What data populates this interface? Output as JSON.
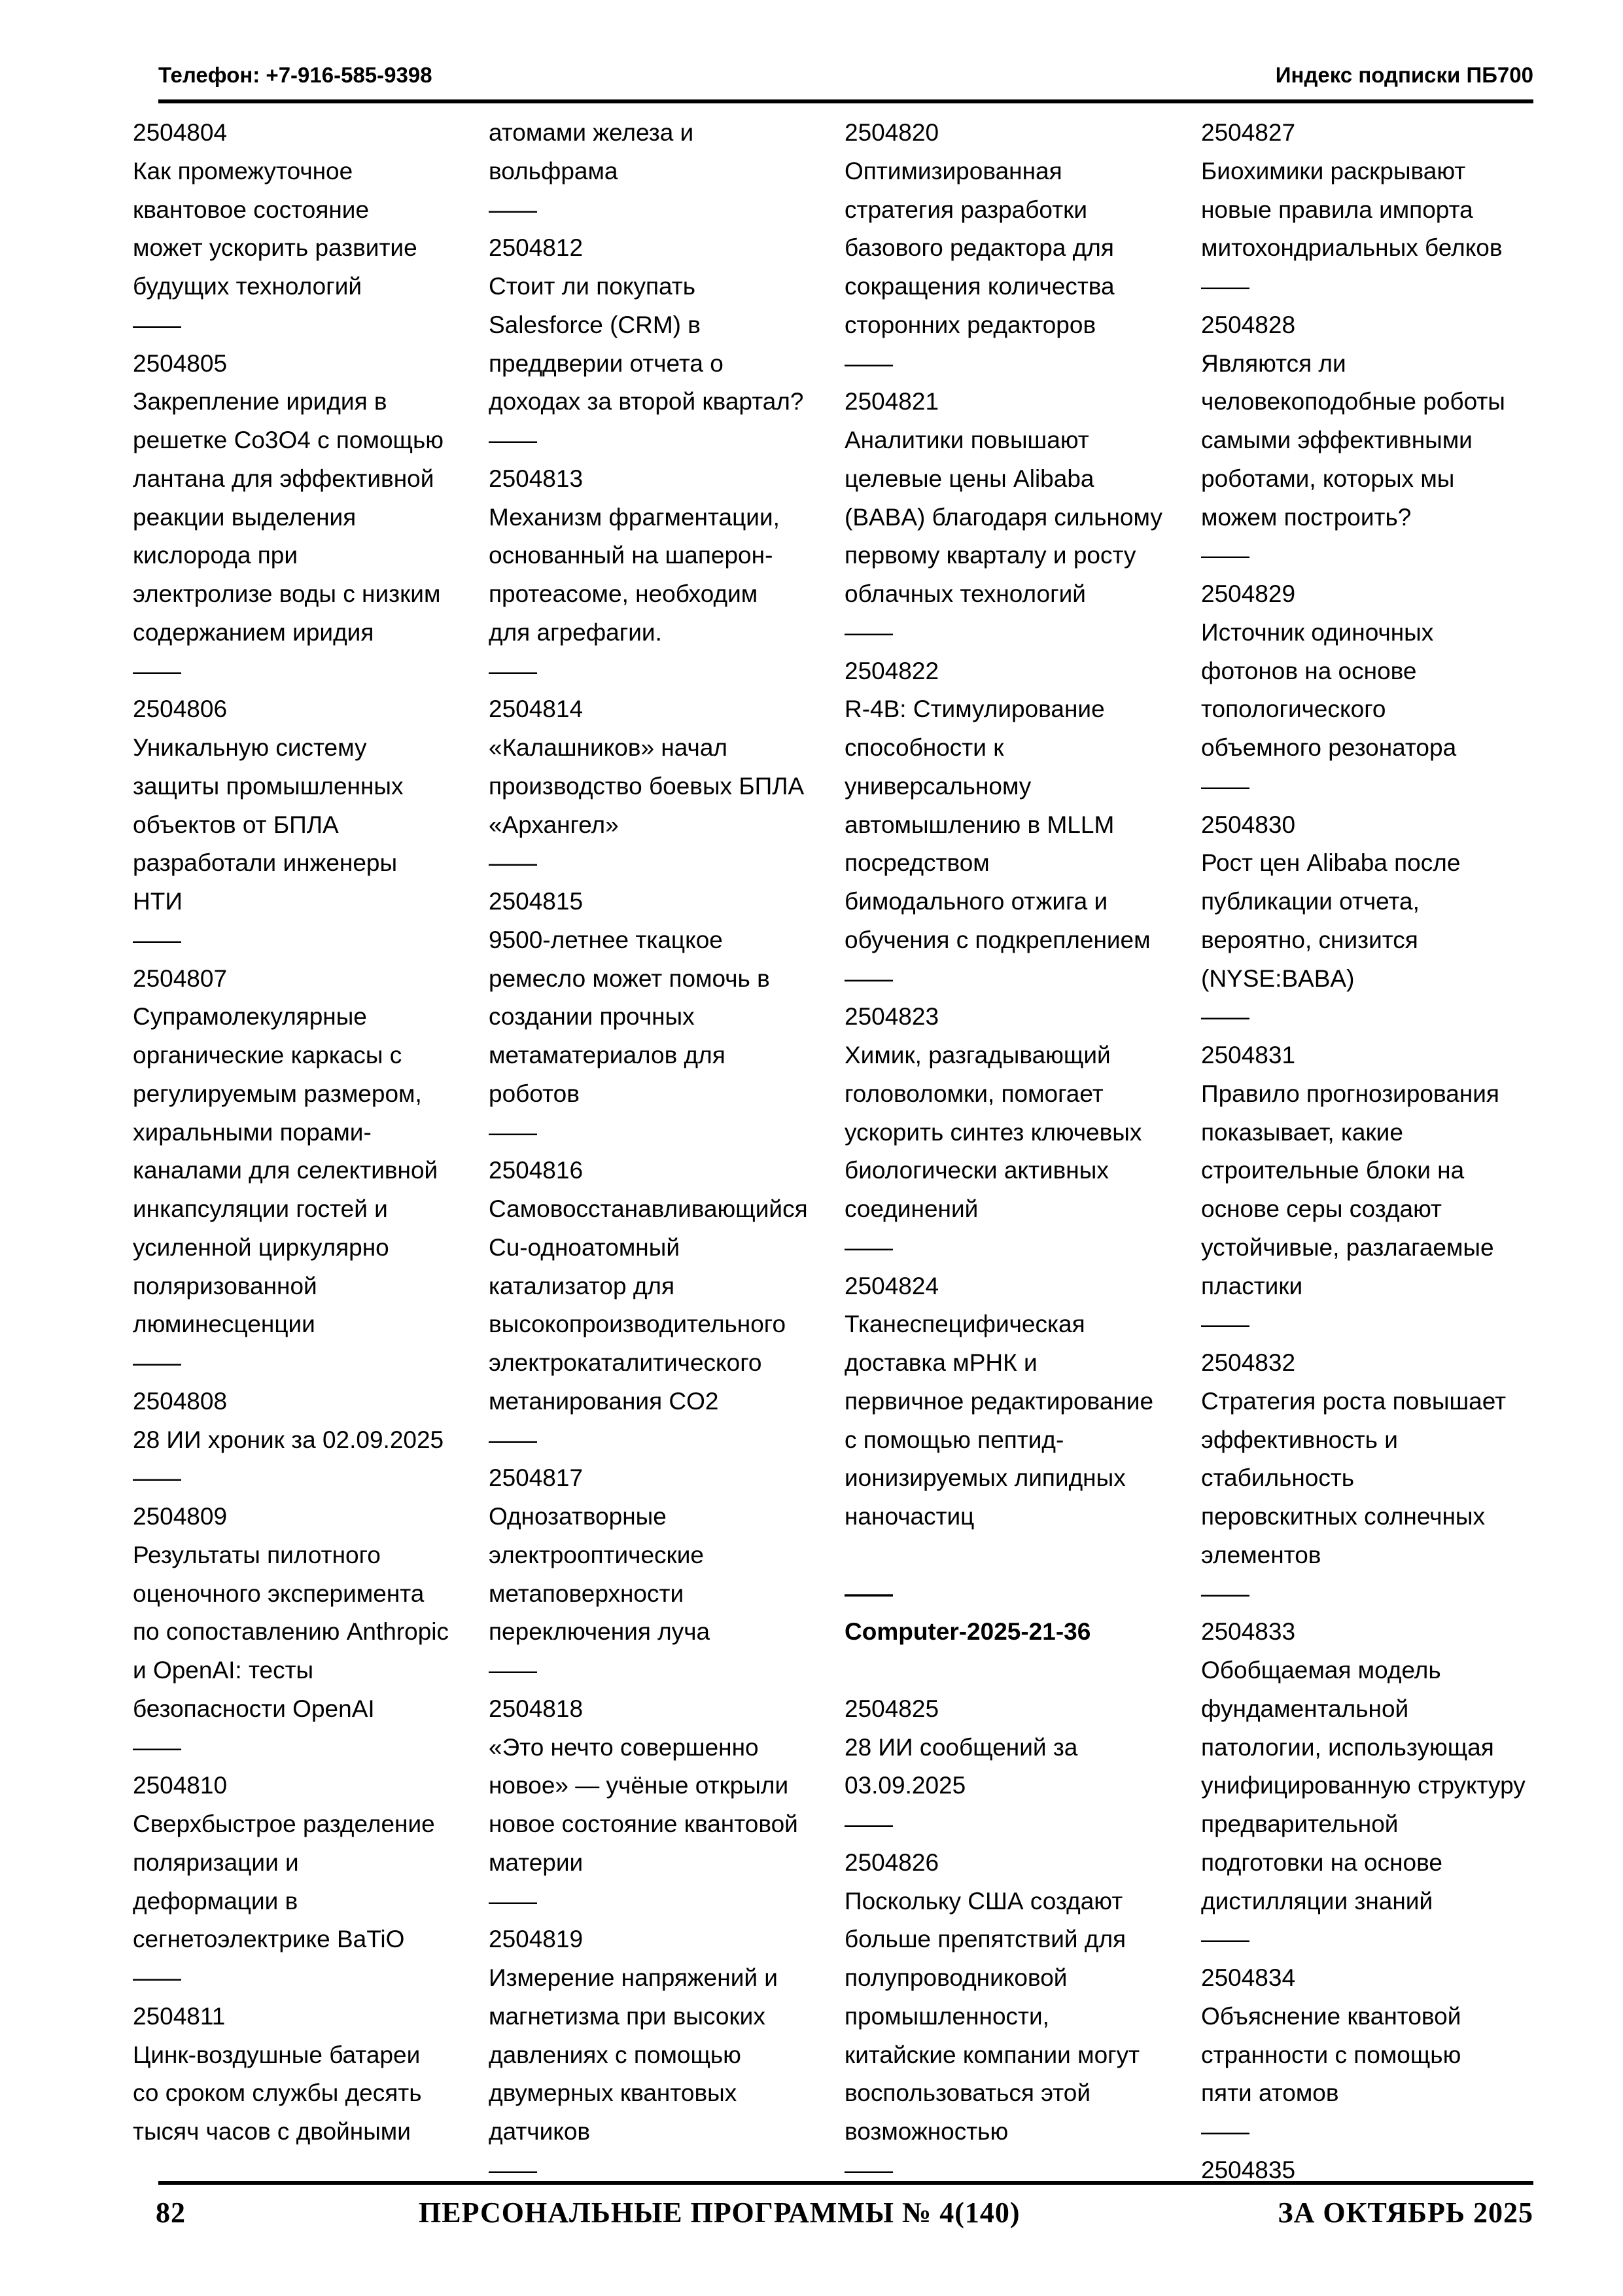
{
  "header": {
    "phone": "Телефон: +7-916-585-9398",
    "index": "Индекс подписки  ПБ700"
  },
  "footer": {
    "page": "82",
    "title": "ПЕРСОНАЛЬНЫЕ ПРОГРАММЫ  № 4(140)",
    "date": "ЗА ОКТЯБРЬ 2025"
  },
  "columns": [
    [
      {
        "k": "id",
        "t": "2504804"
      },
      {
        "k": "title",
        "t": "Как промежуточное"
      },
      {
        "k": "title",
        "t": "квантовое состояние"
      },
      {
        "k": "title",
        "t": "может ускорить развитие"
      },
      {
        "k": "title",
        "t": "будущих технологий"
      },
      {
        "k": "sep",
        "t": "——"
      },
      {
        "k": "id",
        "t": "2504805"
      },
      {
        "k": "title",
        "t": "Закрепление иридия в"
      },
      {
        "k": "title",
        "t": "решетке Co3O4 с помощью"
      },
      {
        "k": "title",
        "t": "лантана для эффективной"
      },
      {
        "k": "title",
        "t": "реакции выделения"
      },
      {
        "k": "title",
        "t": "кислорода при"
      },
      {
        "k": "title",
        "t": "электролизе воды с низким"
      },
      {
        "k": "title",
        "t": "содержанием иридия"
      },
      {
        "k": "sep",
        "t": "——"
      },
      {
        "k": "id",
        "t": "2504806"
      },
      {
        "k": "title",
        "t": "Уникальную систему"
      },
      {
        "k": "title",
        "t": "защиты промышленных"
      },
      {
        "k": "title",
        "t": "объектов от БПЛА"
      },
      {
        "k": "title",
        "t": "разработали инженеры"
      },
      {
        "k": "title",
        "t": "НТИ"
      },
      {
        "k": "sep",
        "t": "——"
      },
      {
        "k": "id",
        "t": "2504807"
      },
      {
        "k": "title",
        "t": "Супрамолекулярные"
      },
      {
        "k": "title",
        "t": "органические каркасы с"
      },
      {
        "k": "title",
        "t": "регулируемым размером,"
      },
      {
        "k": "title",
        "t": "хиральными порами-"
      },
      {
        "k": "title",
        "t": "каналами для селективной"
      },
      {
        "k": "title",
        "t": "инкапсуляции гостей и"
      },
      {
        "k": "title",
        "t": "усиленной циркулярно"
      },
      {
        "k": "title",
        "t": "поляризованной"
      },
      {
        "k": "title",
        "t": "люминесценции"
      },
      {
        "k": "sep",
        "t": "——"
      },
      {
        "k": "id",
        "t": "2504808"
      },
      {
        "k": "title",
        "t": "28 ИИ хроник за 02.09.2025"
      },
      {
        "k": "sep",
        "t": "——"
      },
      {
        "k": "id",
        "t": "2504809"
      },
      {
        "k": "title",
        "t": "Результаты пилотного"
      },
      {
        "k": "title",
        "t": "оценочного эксперимента"
      },
      {
        "k": "title",
        "t": "по сопоставлению Anthropic"
      },
      {
        "k": "title",
        "t": "и OpenAI: тесты"
      },
      {
        "k": "title",
        "t": "безопасности OpenAI"
      },
      {
        "k": "sep",
        "t": "——"
      },
      {
        "k": "id",
        "t": "2504810"
      },
      {
        "k": "title",
        "t": "Сверхбыстрое разделение"
      },
      {
        "k": "title",
        "t": "поляризации и"
      },
      {
        "k": "title",
        "t": "деформации в"
      },
      {
        "k": "title",
        "t": "сегнетоэлектрике BaTiO"
      },
      {
        "k": "sep",
        "t": "——"
      },
      {
        "k": "id",
        "t": "2504811"
      },
      {
        "k": "title",
        "t": "Цинк-воздушные батареи"
      },
      {
        "k": "title",
        "t": "со сроком службы десять"
      },
      {
        "k": "title",
        "t": "тысяч часов с двойными"
      }
    ],
    [
      {
        "k": "title",
        "t": "атомами железа и"
      },
      {
        "k": "title",
        "t": "вольфрама"
      },
      {
        "k": "sep",
        "t": "——"
      },
      {
        "k": "id",
        "t": "2504812"
      },
      {
        "k": "title",
        "t": "Стоит ли покупать"
      },
      {
        "k": "title",
        "t": "Salesforce (CRM) в"
      },
      {
        "k": "title",
        "t": "преддверии отчета о"
      },
      {
        "k": "title",
        "t": "доходах за второй квартал?"
      },
      {
        "k": "sep",
        "t": "——"
      },
      {
        "k": "id",
        "t": "2504813"
      },
      {
        "k": "title",
        "t": "Механизм фрагментации,"
      },
      {
        "k": "title",
        "t": "основанный на шаперон-"
      },
      {
        "k": "title",
        "t": "протеасоме, необходим"
      },
      {
        "k": "title",
        "t": "для агрефагии."
      },
      {
        "k": "sep",
        "t": "——"
      },
      {
        "k": "id",
        "t": "2504814"
      },
      {
        "k": "title",
        "t": "«Калашников» начал"
      },
      {
        "k": "title",
        "t": "производство боевых БПЛА"
      },
      {
        "k": "title",
        "t": "«Архангел»"
      },
      {
        "k": "sep",
        "t": "——"
      },
      {
        "k": "id",
        "t": "2504815"
      },
      {
        "k": "title",
        "t": "9500-летнее ткацкое"
      },
      {
        "k": "title",
        "t": "ремесло может помочь в"
      },
      {
        "k": "title",
        "t": "создании прочных"
      },
      {
        "k": "title",
        "t": "метаматериалов для"
      },
      {
        "k": "title",
        "t": "роботов"
      },
      {
        "k": "sep",
        "t": "——"
      },
      {
        "k": "id",
        "t": "2504816"
      },
      {
        "k": "title",
        "t": "Самовосстанавливающийся"
      },
      {
        "k": "title",
        "t": "Cu-одноатомный"
      },
      {
        "k": "title",
        "t": "катализатор для"
      },
      {
        "k": "title",
        "t": "высокопроизводительного"
      },
      {
        "k": "title",
        "t": "электрокаталитического"
      },
      {
        "k": "title",
        "t": "метанирования CO2"
      },
      {
        "k": "sep",
        "t": "——"
      },
      {
        "k": "id",
        "t": "2504817"
      },
      {
        "k": "title",
        "t": "Однозатворные"
      },
      {
        "k": "title",
        "t": "электрооптические"
      },
      {
        "k": "title",
        "t": "метаповерхности"
      },
      {
        "k": "title",
        "t": "переключения луча"
      },
      {
        "k": "sep",
        "t": "——"
      },
      {
        "k": "id",
        "t": "2504818"
      },
      {
        "k": "title",
        "t": "«Это нечто совершенно"
      },
      {
        "k": "title",
        "t": "новое» — учёные открыли"
      },
      {
        "k": "title",
        "t": "новое состояние квантовой"
      },
      {
        "k": "title",
        "t": "материи"
      },
      {
        "k": "sep",
        "t": "——"
      },
      {
        "k": "id",
        "t": "2504819"
      },
      {
        "k": "title",
        "t": "Измерение напряжений и"
      },
      {
        "k": "title",
        "t": "магнетизма при высоких"
      },
      {
        "k": "title",
        "t": "давлениях с помощью"
      },
      {
        "k": "title",
        "t": "двумерных квантовых"
      },
      {
        "k": "title",
        "t": "датчиков"
      },
      {
        "k": "sep",
        "t": "——"
      }
    ],
    [
      {
        "k": "id",
        "t": "2504820"
      },
      {
        "k": "title",
        "t": "Оптимизированная"
      },
      {
        "k": "title",
        "t": "стратегия разработки"
      },
      {
        "k": "title",
        "t": "базового редактора для"
      },
      {
        "k": "title",
        "t": "сокращения количества"
      },
      {
        "k": "title",
        "t": "сторонних редакторов"
      },
      {
        "k": "sep",
        "t": "——"
      },
      {
        "k": "id",
        "t": "2504821"
      },
      {
        "k": "title",
        "t": "Аналитики повышают"
      },
      {
        "k": "title",
        "t": "целевые цены Alibaba"
      },
      {
        "k": "title",
        "t": "(BABA) благодаря сильному"
      },
      {
        "k": "title",
        "t": "первому кварталу и росту"
      },
      {
        "k": "title",
        "t": "облачных технологий"
      },
      {
        "k": "sep",
        "t": "——"
      },
      {
        "k": "id",
        "t": "2504822"
      },
      {
        "k": "title",
        "t": "R-4B: Стимулирование"
      },
      {
        "k": "title",
        "t": "способности к"
      },
      {
        "k": "title",
        "t": "универсальному"
      },
      {
        "k": "title",
        "t": "автомышлению в MLLM"
      },
      {
        "k": "title",
        "t": "посредством"
      },
      {
        "k": "title",
        "t": "бимодального отжига и"
      },
      {
        "k": "title",
        "t": "обучения с подкреплением"
      },
      {
        "k": "sep",
        "t": "——"
      },
      {
        "k": "id",
        "t": "2504823"
      },
      {
        "k": "title",
        "t": "Химик, разгадывающий"
      },
      {
        "k": "title",
        "t": "головоломки, помогает"
      },
      {
        "k": "title",
        "t": "ускорить синтез ключевых"
      },
      {
        "k": "title",
        "t": "биологически активных"
      },
      {
        "k": "title",
        "t": "соединений"
      },
      {
        "k": "sep",
        "t": "——"
      },
      {
        "k": "id",
        "t": "2504824"
      },
      {
        "k": "title",
        "t": "Тканеспецифическая"
      },
      {
        "k": "title",
        "t": "доставка мРНК и"
      },
      {
        "k": "title",
        "t": "первичное редактирование"
      },
      {
        "k": "title",
        "t": "с помощью пептид-"
      },
      {
        "k": "title",
        "t": "ионизируемых липидных"
      },
      {
        "k": "title",
        "t": "наночастиц"
      },
      {
        "k": "blank",
        "t": ""
      },
      {
        "k": "sep-bold",
        "t": "——"
      },
      {
        "k": "section",
        "t": "Computer-2025-21-36"
      },
      {
        "k": "blank",
        "t": ""
      },
      {
        "k": "id",
        "t": "2504825"
      },
      {
        "k": "title",
        "t": "28 ИИ сообщений за"
      },
      {
        "k": "title",
        "t": "03.09.2025"
      },
      {
        "k": "sep",
        "t": "——"
      },
      {
        "k": "id",
        "t": "2504826"
      },
      {
        "k": "title",
        "t": "Поскольку США создают"
      },
      {
        "k": "title",
        "t": "больше препятствий для"
      },
      {
        "k": "title",
        "t": "полупроводниковой"
      },
      {
        "k": "title",
        "t": "промышленности,"
      },
      {
        "k": "title",
        "t": "китайские компании могут"
      },
      {
        "k": "title",
        "t": "воспользоваться этой"
      },
      {
        "k": "title",
        "t": "возможностью"
      },
      {
        "k": "sep",
        "t": "——"
      }
    ],
    [
      {
        "k": "id",
        "t": "2504827"
      },
      {
        "k": "title",
        "t": "Биохимики раскрывают"
      },
      {
        "k": "title",
        "t": "новые правила импорта"
      },
      {
        "k": "title",
        "t": "митохондриальных белков"
      },
      {
        "k": "sep",
        "t": "——"
      },
      {
        "k": "id",
        "t": "2504828"
      },
      {
        "k": "title",
        "t": "Являются ли"
      },
      {
        "k": "title",
        "t": "человекоподобные роботы"
      },
      {
        "k": "title",
        "t": "самыми эффективными"
      },
      {
        "k": "title",
        "t": "роботами, которых мы"
      },
      {
        "k": "title",
        "t": "можем построить?"
      },
      {
        "k": "sep",
        "t": "——"
      },
      {
        "k": "id",
        "t": "2504829"
      },
      {
        "k": "title",
        "t": "Источник одиночных"
      },
      {
        "k": "title",
        "t": "фотонов на основе"
      },
      {
        "k": "title",
        "t": "топологического"
      },
      {
        "k": "title",
        "t": "объемного резонатора"
      },
      {
        "k": "sep",
        "t": "——"
      },
      {
        "k": "id",
        "t": "2504830"
      },
      {
        "k": "title",
        "t": "Рост цен Alibaba после"
      },
      {
        "k": "title",
        "t": "публикации отчета,"
      },
      {
        "k": "title",
        "t": "вероятно, снизится"
      },
      {
        "k": "title",
        "t": "(NYSE:BABA)"
      },
      {
        "k": "sep",
        "t": "——"
      },
      {
        "k": "id",
        "t": "2504831"
      },
      {
        "k": "title",
        "t": "Правило прогнозирования"
      },
      {
        "k": "title",
        "t": "показывает, какие"
      },
      {
        "k": "title",
        "t": "строительные блоки на"
      },
      {
        "k": "title",
        "t": "основе серы создают"
      },
      {
        "k": "title",
        "t": "устойчивые, разлагаемые"
      },
      {
        "k": "title",
        "t": "пластики"
      },
      {
        "k": "sep",
        "t": "——"
      },
      {
        "k": "id",
        "t": "2504832"
      },
      {
        "k": "title",
        "t": "Стратегия роста повышает"
      },
      {
        "k": "title",
        "t": "эффективность и"
      },
      {
        "k": "title",
        "t": "стабильность"
      },
      {
        "k": "title",
        "t": "перовскитных солнечных"
      },
      {
        "k": "title",
        "t": "элементов"
      },
      {
        "k": "sep",
        "t": "——"
      },
      {
        "k": "id",
        "t": "2504833"
      },
      {
        "k": "title",
        "t": "Обобщаемая модель"
      },
      {
        "k": "title",
        "t": "фундаментальной"
      },
      {
        "k": "title",
        "t": "патологии, использующая"
      },
      {
        "k": "title",
        "t": "унифицированную структуру"
      },
      {
        "k": "title",
        "t": "предварительной"
      },
      {
        "k": "title",
        "t": "подготовки на основе"
      },
      {
        "k": "title",
        "t": "дистилляции знаний"
      },
      {
        "k": "sep",
        "t": "——"
      },
      {
        "k": "id",
        "t": "2504834"
      },
      {
        "k": "title",
        "t": "Объяснение квантовой"
      },
      {
        "k": "title",
        "t": "странности с помощью"
      },
      {
        "k": "title",
        "t": "пяти атомов"
      },
      {
        "k": "sep",
        "t": "——"
      },
      {
        "k": "id",
        "t": "2504835"
      }
    ]
  ]
}
